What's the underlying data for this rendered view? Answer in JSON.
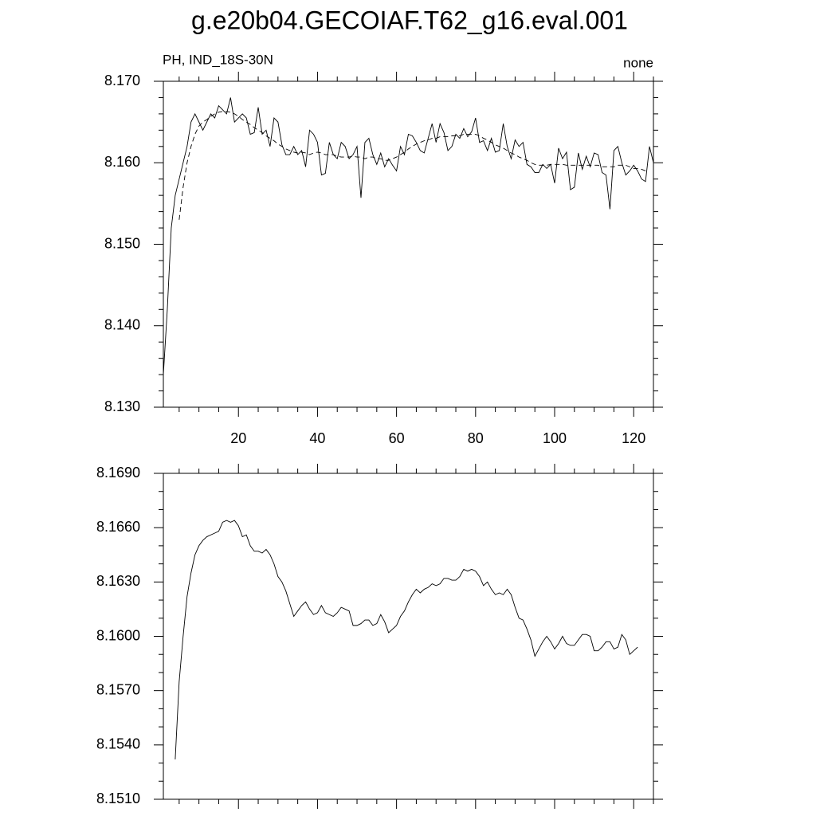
{
  "chart_data": [
    {
      "type": "line",
      "title": "g.e20b04.GECOIAF.T62_g16.eval.001",
      "left_string": "PH, IND_18S-30N",
      "right_string": "none",
      "x": [
        1,
        2,
        3,
        4,
        5,
        6,
        7,
        8,
        9,
        10,
        11,
        12,
        13,
        14,
        15,
        16,
        17,
        18,
        19,
        20,
        21,
        22,
        23,
        24,
        25,
        26,
        27,
        28,
        29,
        30,
        31,
        32,
        33,
        34,
        35,
        36,
        37,
        38,
        39,
        40,
        41,
        42,
        43,
        44,
        45,
        46,
        47,
        48,
        49,
        50,
        51,
        52,
        53,
        54,
        55,
        56,
        57,
        58,
        59,
        60,
        61,
        62,
        63,
        64,
        65,
        66,
        67,
        68,
        69,
        70,
        71,
        72,
        73,
        74,
        75,
        76,
        77,
        78,
        79,
        80,
        81,
        82,
        83,
        84,
        85,
        86,
        87,
        88,
        89,
        90,
        91,
        92,
        93,
        94,
        95,
        96,
        97,
        98,
        99,
        100,
        101,
        102,
        103,
        104,
        105,
        106,
        107,
        108,
        109,
        110,
        111,
        112,
        113,
        114,
        115,
        116,
        117,
        118,
        119,
        120,
        121,
        122,
        123,
        124,
        125
      ],
      "series": [
        {
          "color": "#000000",
          "dashed": false,
          "values": [
            8.134,
            8.142,
            8.152,
            8.156,
            8.158,
            8.16,
            8.162,
            8.165,
            8.166,
            8.165,
            8.164,
            8.165,
            8.166,
            8.1655,
            8.167,
            8.1665,
            8.166,
            8.168,
            8.165,
            8.1655,
            8.166,
            8.1655,
            8.1635,
            8.1637,
            8.1668,
            8.1635,
            8.164,
            8.162,
            8.1655,
            8.165,
            8.1622,
            8.161,
            8.161,
            8.162,
            8.161,
            8.1615,
            8.1595,
            8.164,
            8.1635,
            8.1625,
            8.1585,
            8.1587,
            8.1625,
            8.161,
            8.1605,
            8.1625,
            8.162,
            8.1605,
            8.161,
            8.162,
            8.1557,
            8.1625,
            8.163,
            8.161,
            8.1598,
            8.1612,
            8.1595,
            8.1605,
            8.1597,
            8.159,
            8.162,
            8.161,
            8.1635,
            8.1633,
            8.1625,
            8.1615,
            8.1612,
            8.163,
            8.1648,
            8.1625,
            8.1648,
            8.1637,
            8.1615,
            8.162,
            8.1635,
            8.163,
            8.1642,
            8.1632,
            8.1638,
            8.1655,
            8.1625,
            8.1627,
            8.1615,
            8.163,
            8.1613,
            8.1615,
            8.1648,
            8.162,
            8.1605,
            8.1628,
            8.162,
            8.1625,
            8.1598,
            8.1595,
            8.1588,
            8.1588,
            8.1598,
            8.1593,
            8.1598,
            8.1575,
            8.1618,
            8.1605,
            8.1613,
            8.1567,
            8.157,
            8.1612,
            8.1592,
            8.1608,
            8.1595,
            8.1612,
            8.161,
            8.1588,
            8.1585,
            8.1543,
            8.1615,
            8.162,
            8.16,
            8.1585,
            8.159,
            8.1597,
            8.159,
            8.158,
            8.1577,
            8.162,
            8.16
          ]
        },
        {
          "color": "#000000",
          "dashed": true,
          "values": [
            null,
            null,
            null,
            null,
            8.153,
            8.157,
            8.16,
            8.162,
            8.1635,
            8.1645,
            8.165,
            8.1653,
            8.1657,
            8.166,
            8.1662,
            8.1663,
            8.1663,
            8.1662,
            8.166,
            8.1657,
            8.1653,
            8.165,
            8.1647,
            8.1643,
            8.164,
            8.1637,
            8.1633,
            8.163,
            8.1627,
            8.1623,
            8.162,
            8.1617,
            8.1615,
            8.1613,
            8.1612,
            8.1613,
            8.1612,
            8.161,
            8.1612,
            8.1613,
            8.1612,
            8.161,
            8.161,
            8.161,
            8.1608,
            8.1607,
            8.1607,
            8.1607,
            8.1608,
            8.1607,
            8.1607,
            8.1605,
            8.1607,
            8.1607,
            8.1605,
            8.1605,
            8.1603,
            8.1603,
            8.1605,
            8.1607,
            8.161,
            8.1613,
            8.1617,
            8.162,
            8.1623,
            8.1625,
            8.1627,
            8.1628,
            8.163,
            8.163,
            8.1632,
            8.1632,
            8.1632,
            8.1633,
            8.1633,
            8.1633,
            8.1635,
            8.1635,
            8.1635,
            8.1635,
            8.1633,
            8.163,
            8.1628,
            8.1625,
            8.1622,
            8.162,
            8.1618,
            8.1615,
            8.1612,
            8.161,
            8.1607,
            8.1605,
            8.1603,
            8.16,
            8.1598,
            8.1597,
            8.1597,
            8.1597,
            8.1598,
            8.1598,
            8.1598,
            8.1598,
            8.1597,
            8.1597,
            8.1597,
            8.1597,
            8.1597,
            8.1597,
            8.1597,
            8.1597,
            8.1597,
            8.1595,
            8.1595,
            8.1595,
            8.1595,
            8.1597,
            8.1597,
            8.1597,
            8.1595,
            8.1593,
            8.1593,
            8.1592,
            8.159,
            null,
            null
          ]
        }
      ],
      "xlim": [
        1,
        125
      ],
      "ylim": [
        8.13,
        8.17
      ],
      "xticks": [
        20,
        40,
        60,
        80,
        100,
        120
      ],
      "yticks": [
        {
          "value": 8.13,
          "label": "8.130"
        },
        {
          "value": 8.14,
          "label": "8.140"
        },
        {
          "value": 8.15,
          "label": "8.150"
        },
        {
          "value": 8.16,
          "label": "8.160"
        },
        {
          "value": 8.17,
          "label": "8.170"
        }
      ],
      "show_xtick_labels": true
    },
    {
      "type": "line",
      "x": [
        1,
        2,
        3,
        4,
        5,
        6,
        7,
        8,
        9,
        10,
        11,
        12,
        13,
        14,
        15,
        16,
        17,
        18,
        19,
        20,
        21,
        22,
        23,
        24,
        25,
        26,
        27,
        28,
        29,
        30,
        31,
        32,
        33,
        34,
        35,
        36,
        37,
        38,
        39,
        40,
        41,
        42,
        43,
        44,
        45,
        46,
        47,
        48,
        49,
        50,
        51,
        52,
        53,
        54,
        55,
        56,
        57,
        58,
        59,
        60,
        61,
        62,
        63,
        64,
        65,
        66,
        67,
        68,
        69,
        70,
        71,
        72,
        73,
        74,
        75,
        76,
        77,
        78,
        79,
        80,
        81,
        82,
        83,
        84,
        85,
        86,
        87,
        88,
        89,
        90,
        91,
        92,
        93,
        94,
        95,
        96,
        97,
        98,
        99,
        100,
        101,
        102,
        103,
        104,
        105,
        106,
        107,
        108,
        109,
        110,
        111,
        112,
        113,
        114,
        115,
        116,
        117,
        118,
        119,
        120,
        121,
        122,
        123,
        124,
        125
      ],
      "series": [
        {
          "color": "#000000",
          "dashed": false,
          "values": [
            null,
            null,
            null,
            8.1532,
            8.1575,
            8.16,
            8.1622,
            8.1635,
            8.1645,
            8.165,
            8.1653,
            8.1655,
            8.1656,
            8.1657,
            8.1658,
            8.1663,
            8.1664,
            8.1663,
            8.1664,
            8.1661,
            8.1655,
            8.1656,
            8.165,
            8.1647,
            8.1647,
            8.1646,
            8.1648,
            8.1645,
            8.164,
            8.1633,
            8.163,
            8.1625,
            8.1618,
            8.1611,
            8.1614,
            8.1617,
            8.1619,
            8.1615,
            8.1612,
            8.1613,
            8.1617,
            8.1613,
            8.1612,
            8.1611,
            8.1613,
            8.1616,
            8.1615,
            8.1614,
            8.1606,
            8.1606,
            8.1607,
            8.1609,
            8.1609,
            8.1606,
            8.1607,
            8.1612,
            8.1608,
            8.1602,
            8.1604,
            8.1606,
            8.1611,
            8.1614,
            8.1619,
            8.1623,
            8.1626,
            8.1624,
            8.1626,
            8.1627,
            8.1629,
            8.1628,
            8.1629,
            8.1632,
            8.1632,
            8.1631,
            8.1631,
            8.1633,
            8.1637,
            8.1636,
            8.1637,
            8.1636,
            8.1633,
            8.1628,
            8.163,
            8.1626,
            8.1623,
            8.1624,
            8.1623,
            8.1626,
            8.1623,
            8.1616,
            8.161,
            8.1609,
            8.1604,
            8.1598,
            8.1589,
            8.1593,
            8.1597,
            8.16,
            8.1597,
            8.1593,
            8.1596,
            8.16,
            8.1596,
            8.1595,
            8.1595,
            8.1598,
            8.1601,
            8.1601,
            8.16,
            8.1592,
            8.1592,
            8.1594,
            8.1597,
            8.1597,
            8.1593,
            8.1594,
            8.1601,
            8.1598,
            8.159,
            8.1592,
            8.1594,
            null,
            null,
            null,
            null
          ]
        }
      ],
      "xlim": [
        1,
        125
      ],
      "ylim": [
        8.151,
        8.169
      ],
      "xticks": [
        20,
        40,
        60,
        80,
        100,
        120
      ],
      "yticks": [
        {
          "value": 8.151,
          "label": "8.1510"
        },
        {
          "value": 8.154,
          "label": "8.1540"
        },
        {
          "value": 8.157,
          "label": "8.1570"
        },
        {
          "value": 8.16,
          "label": "8.1600"
        },
        {
          "value": 8.163,
          "label": "8.1630"
        },
        {
          "value": 8.166,
          "label": "8.1660"
        },
        {
          "value": 8.169,
          "label": "8.1690"
        }
      ],
      "show_xtick_labels": false
    }
  ]
}
